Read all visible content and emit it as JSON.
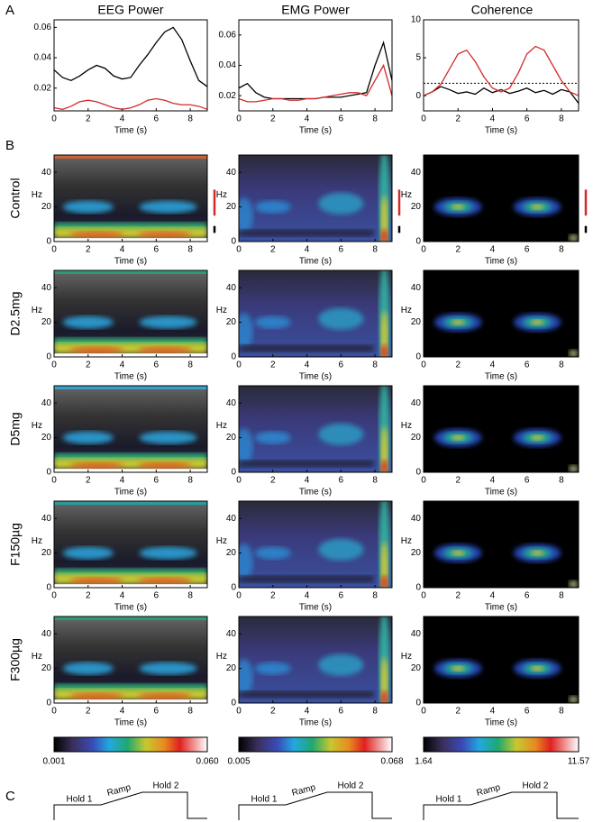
{
  "panel_labels": [
    "A",
    "B",
    "C"
  ],
  "column_titles": [
    "EEG Power",
    "EMG Power",
    "Coherence"
  ],
  "chart_data": [
    {
      "type": "line",
      "xlabel": "Time (s)",
      "x": [
        0,
        0.5,
        1,
        1.5,
        2,
        2.5,
        3,
        3.5,
        4,
        4.5,
        5,
        5.5,
        6,
        6.5,
        7,
        7.5,
        8,
        8.5,
        9
      ],
      "xlim": [
        0,
        9
      ],
      "xticks": [
        0,
        2,
        4,
        6,
        8
      ],
      "ylim": [
        0.005,
        0.065
      ],
      "yticks": [
        0.02,
        0.04,
        0.06
      ],
      "series": [
        {
          "color": "#000000",
          "values": [
            0.032,
            0.027,
            0.025,
            0.028,
            0.032,
            0.035,
            0.033,
            0.028,
            0.026,
            0.027,
            0.035,
            0.042,
            0.05,
            0.057,
            0.06,
            0.052,
            0.038,
            0.025,
            0.021
          ]
        },
        {
          "color": "#d42a2a",
          "values": [
            0.007,
            0.006,
            0.008,
            0.011,
            0.012,
            0.011,
            0.009,
            0.007,
            0.006,
            0.007,
            0.009,
            0.012,
            0.013,
            0.012,
            0.01,
            0.009,
            0.009,
            0.008,
            0.006
          ]
        }
      ]
    },
    {
      "type": "line",
      "xlabel": "Time (s)",
      "x": [
        0,
        0.5,
        1,
        1.5,
        2,
        2.5,
        3,
        3.5,
        4,
        4.5,
        5,
        5.5,
        6,
        6.5,
        7,
        7.5,
        8,
        8.5,
        9
      ],
      "xlim": [
        0,
        9
      ],
      "xticks": [
        0,
        2,
        4,
        6,
        8
      ],
      "ylim": [
        0.01,
        0.07
      ],
      "yticks": [
        0.02,
        0.04,
        0.06
      ],
      "series": [
        {
          "color": "#000000",
          "values": [
            0.025,
            0.028,
            0.022,
            0.019,
            0.018,
            0.018,
            0.018,
            0.018,
            0.018,
            0.018,
            0.019,
            0.019,
            0.019,
            0.02,
            0.021,
            0.022,
            0.04,
            0.055,
            0.03
          ]
        },
        {
          "color": "#d42a2a",
          "values": [
            0.018,
            0.016,
            0.016,
            0.017,
            0.018,
            0.018,
            0.017,
            0.017,
            0.018,
            0.018,
            0.019,
            0.02,
            0.021,
            0.022,
            0.022,
            0.02,
            0.03,
            0.04,
            0.02
          ]
        }
      ]
    },
    {
      "type": "line",
      "xlabel": "Time (s)",
      "x": [
        0,
        0.5,
        1,
        1.5,
        2,
        2.5,
        3,
        3.5,
        4,
        4.5,
        5,
        5.5,
        6,
        6.5,
        7,
        7.5,
        8,
        8.5,
        9
      ],
      "xlim": [
        0,
        9
      ],
      "xticks": [
        0,
        2,
        4,
        6,
        8
      ],
      "ylim": [
        -2,
        10
      ],
      "yticks": [
        0,
        5,
        10
      ],
      "threshold": 1.64,
      "series": [
        {
          "color": "#000000",
          "values": [
            0,
            0.5,
            1.2,
            0.8,
            0.3,
            0.5,
            0.2,
            1.0,
            0.4,
            0.8,
            0.3,
            0.6,
            1.0,
            0.4,
            0.7,
            0.2,
            0.8,
            0.5,
            -1
          ]
        },
        {
          "color": "#d42a2a",
          "values": [
            0,
            0.5,
            1.5,
            3.5,
            5.5,
            6.0,
            4.5,
            2.5,
            1.0,
            0.5,
            1.0,
            3.0,
            5.5,
            6.5,
            6.0,
            4.0,
            2.0,
            0.5,
            0
          ]
        }
      ]
    }
  ],
  "spectrograms": {
    "row_labels": [
      "Control",
      "D2.5mg",
      "D5mg",
      "F150µg",
      "F300µg"
    ],
    "ylabel": "Hz",
    "xlabel": "Time (s)",
    "xlim": [
      0,
      9
    ],
    "xticks": [
      0,
      2,
      4,
      6,
      8
    ],
    "ylim": [
      0,
      50
    ],
    "yticks": [
      0,
      20,
      40
    ]
  },
  "colorbars": [
    {
      "clim": [
        0.001,
        {
          "value": 0.06,
          "label": "0.060"
        }
      ]
    },
    {
      "clim": [
        0.005,
        0.068
      ]
    },
    {
      "clim": [
        1.64,
        11.57
      ]
    }
  ],
  "panel_c": {
    "labels": [
      "Hold 1",
      "Ramp",
      "Hold 2"
    ]
  }
}
